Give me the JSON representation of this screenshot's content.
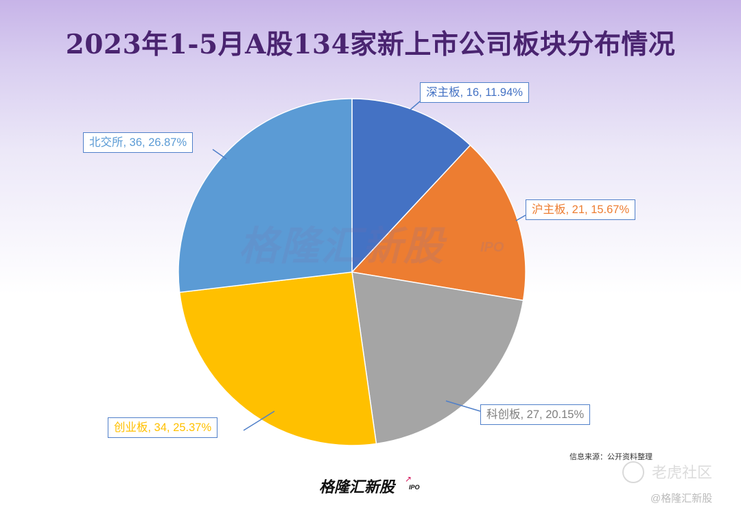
{
  "title": "2023年1-5月A股134家新上市公司板块分布情况",
  "watermark": {
    "text": "格隆汇新股",
    "sub": "IPO"
  },
  "source_note": "信息来源：公开资料整理",
  "footer": {
    "logo": "格隆汇新股",
    "logo_sub": "IPO"
  },
  "overlay": {
    "brand": "老虎社区",
    "credit": "@格隆汇新股"
  },
  "chart_data": {
    "type": "pie",
    "title": "2023年1-5月A股134家新上市公司板块分布情况",
    "total": 134,
    "slices": [
      {
        "name": "深主板",
        "value": 16,
        "percent": "11.94%",
        "label": "深主板, 16, 11.94%",
        "color": "#4472c4",
        "label_color": "#4472c4"
      },
      {
        "name": "沪主板",
        "value": 21,
        "percent": "15.67%",
        "label": "沪主板, 21, 15.67%",
        "color": "#ed7d31",
        "label_color": "#ed7d31"
      },
      {
        "name": "科创板",
        "value": 27,
        "percent": "20.15%",
        "label": "科创板, 27, 20.15%",
        "color": "#a5a5a5",
        "label_color": "#7f7f7f"
      },
      {
        "name": "创业板",
        "value": 34,
        "percent": "25.37%",
        "label": "创业板, 34, 25.37%",
        "color": "#ffc000",
        "label_color": "#ffc000"
      },
      {
        "name": "北交所",
        "value": 36,
        "percent": "26.87%",
        "label": "北交所, 36, 26.87%",
        "color": "#5b9bd5",
        "label_color": "#5b9bd5"
      }
    ],
    "start_angle_deg": 0,
    "direction": "clockwise"
  }
}
